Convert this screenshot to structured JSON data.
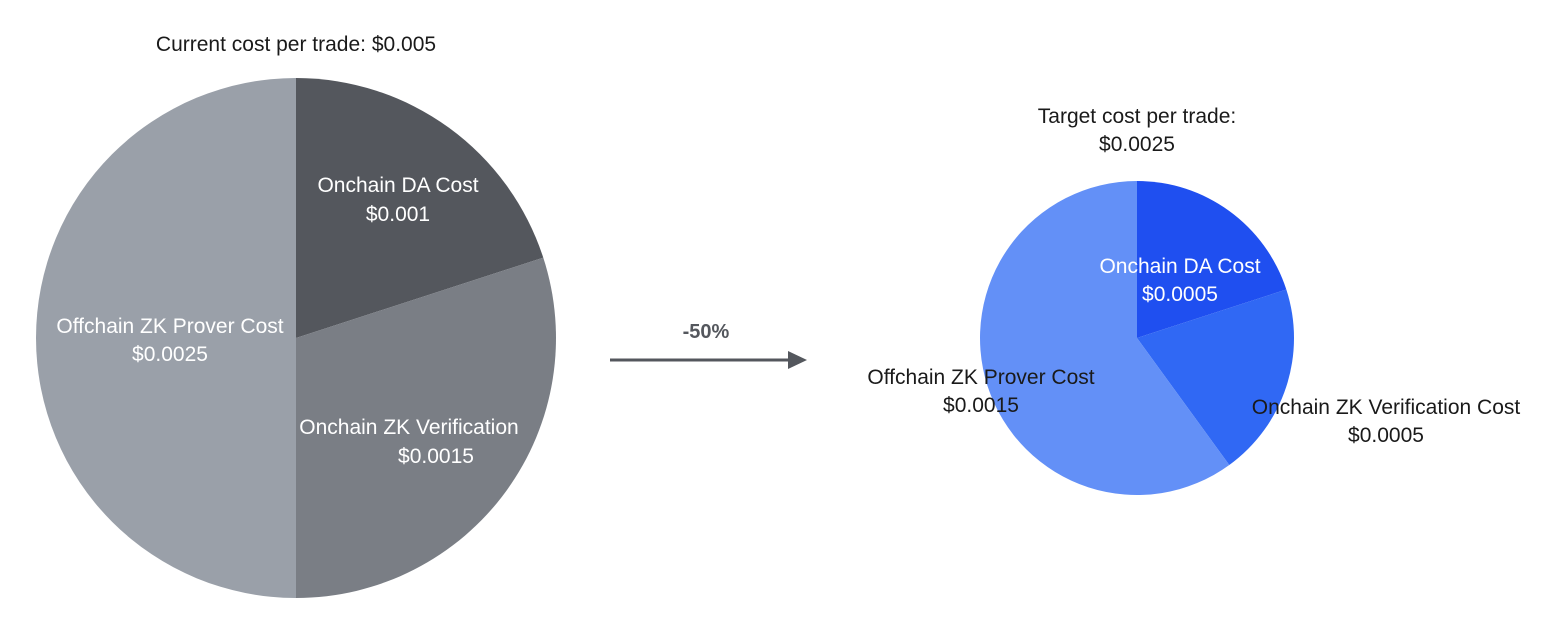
{
  "arrow": {
    "label": "-50%"
  },
  "chart_data": [
    {
      "type": "pie",
      "title_lines": [
        "Current cost per trade: $0.005"
      ],
      "slices": [
        {
          "label": "Onchain DA Cost",
          "value_label": "$0.001",
          "value": 0.001,
          "color": "#54575d"
        },
        {
          "label": "Onchain ZK Verification",
          "value_label": "$0.0015",
          "value": 0.0015,
          "color": "#7a7e85"
        },
        {
          "label": "Offchain ZK Prover Cost",
          "value_label": "$0.0025",
          "value": 0.0025,
          "color": "#9aa0a9"
        }
      ]
    },
    {
      "type": "pie",
      "title_lines": [
        "Target cost per trade:",
        "$0.0025"
      ],
      "slices": [
        {
          "label": "Onchain DA Cost",
          "value_label": "$0.0005",
          "value": 0.0005,
          "color": "#1f4ff0"
        },
        {
          "label": "Onchain ZK Verification Cost",
          "value_label": "$0.0005",
          "value": 0.0005,
          "color": "#3068f4"
        },
        {
          "label": "Offchain ZK Prover Cost",
          "value_label": "$0.0015",
          "value": 0.0015,
          "color": "#6390f7"
        }
      ]
    }
  ]
}
